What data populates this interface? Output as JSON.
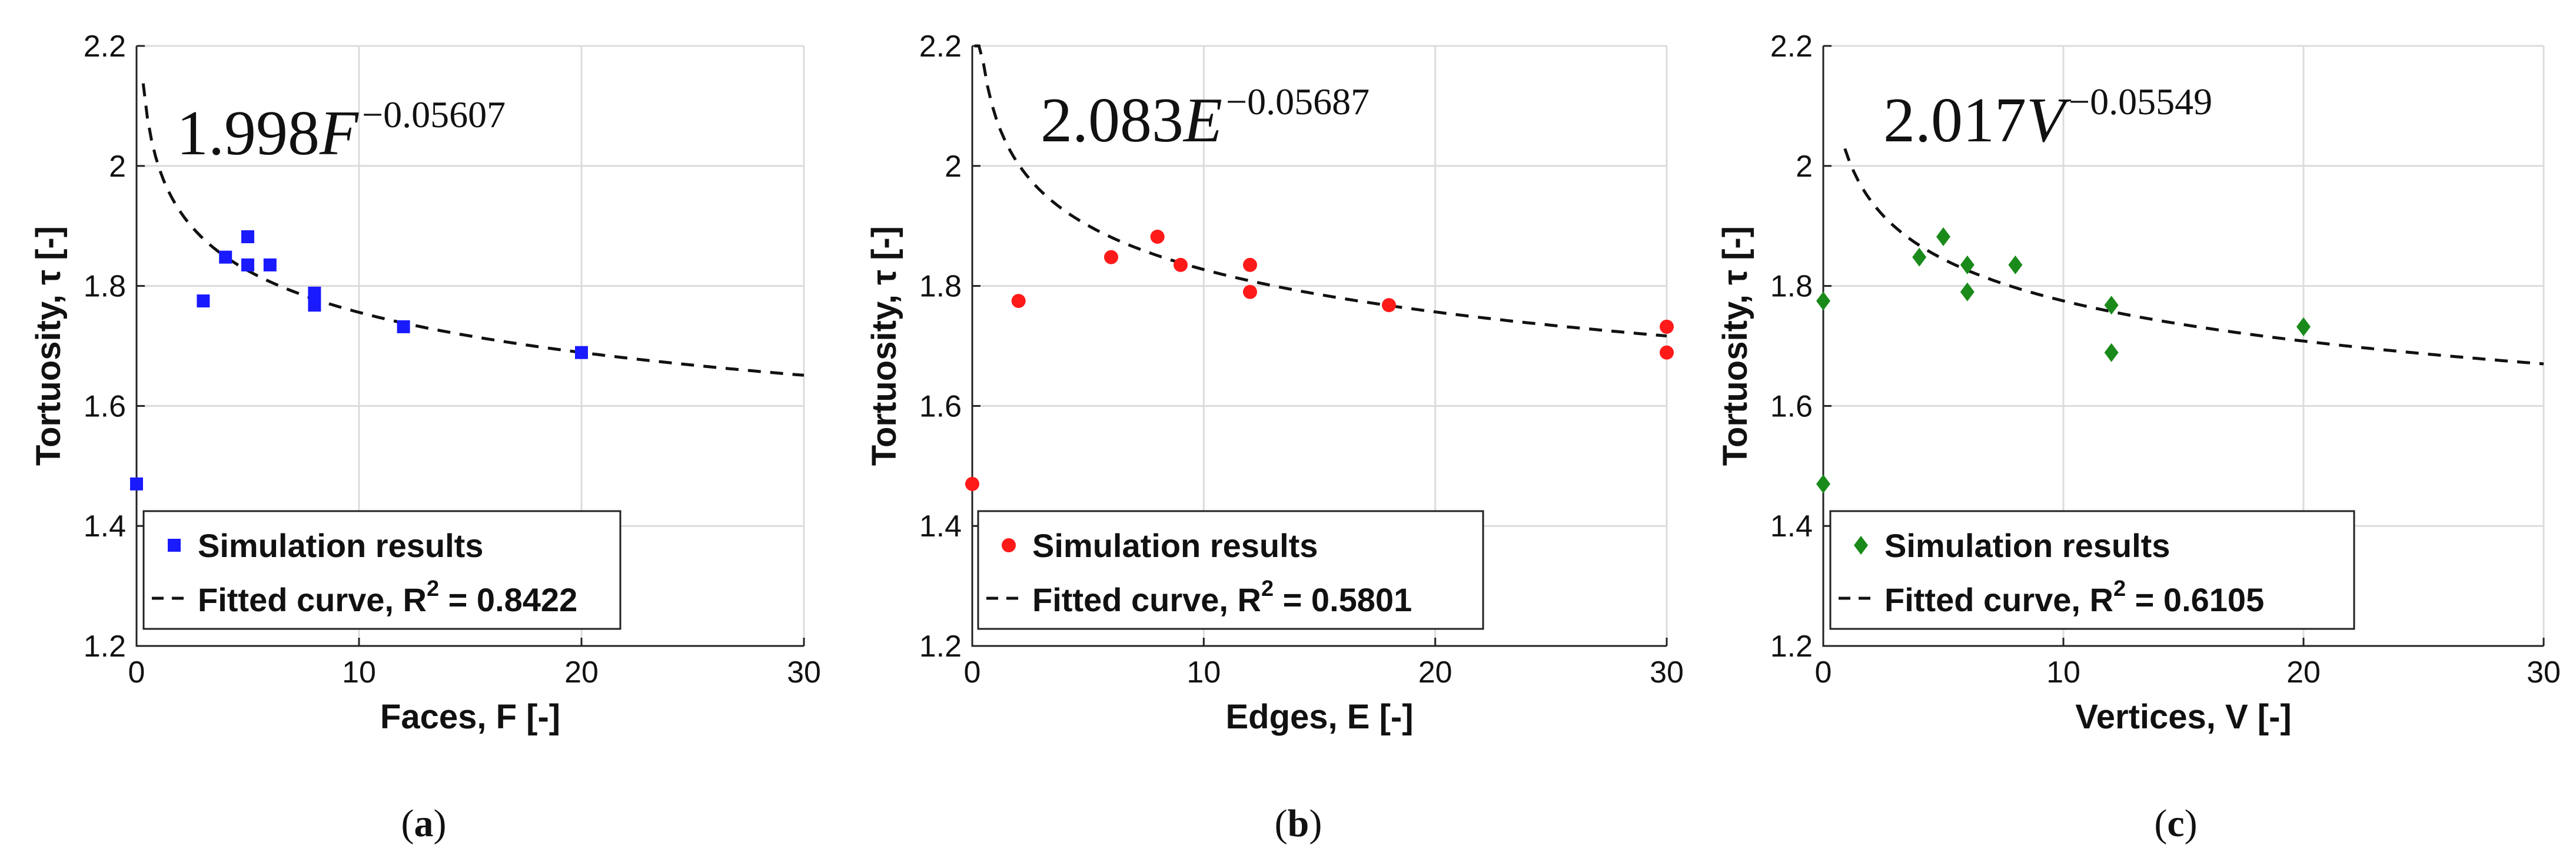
{
  "chart_data": [
    {
      "type": "scatter",
      "panel_label": "a",
      "xlabel": "Faces, F [-]",
      "ylabel": "Tortuosity, τ [-]",
      "xlim": [
        0,
        30
      ],
      "ylim": [
        1.2,
        2.2
      ],
      "xticks": [
        0,
        10,
        20,
        30
      ],
      "yticks": [
        1.2,
        1.4,
        1.6,
        1.8,
        2.0,
        2.2
      ],
      "xtick_labels": [
        "0",
        "10",
        "20",
        "30"
      ],
      "ytick_labels": [
        "1.2",
        "1.4",
        "1.6",
        "1.8",
        "2",
        "2.2"
      ],
      "grid": true,
      "marker": "square",
      "color": "#1a1aff",
      "points": {
        "x": [
          0,
          3,
          4,
          5,
          5,
          6,
          8,
          8,
          12,
          20
        ],
        "y": [
          1.47,
          1.775,
          1.848,
          1.882,
          1.835,
          1.835,
          1.788,
          1.768,
          1.732,
          1.689
        ]
      },
      "fit": {
        "a": 1.998,
        "b": -0.05607,
        "x_start": 0.3,
        "x_end": 30
      },
      "formula": {
        "coef": "1.998",
        "var": "F",
        "exp": "−0.05607"
      },
      "legend": {
        "position": "bottom-left",
        "entries": [
          "Simulation results",
          "Fitted curve, R",
          "2",
          " = 0.8422"
        ]
      }
    },
    {
      "type": "scatter",
      "panel_label": "b",
      "xlabel": "Edges, E [-]",
      "ylabel": "Tortuosity, τ [-]",
      "xlim": [
        0,
        30
      ],
      "ylim": [
        1.2,
        2.2
      ],
      "xticks": [
        0,
        10,
        20,
        30
      ],
      "yticks": [
        1.2,
        1.4,
        1.6,
        1.8,
        2.0,
        2.2
      ],
      "xtick_labels": [
        "0",
        "10",
        "20",
        "30"
      ],
      "ytick_labels": [
        "1.2",
        "1.4",
        "1.6",
        "1.8",
        "2",
        "2.2"
      ],
      "grid": true,
      "marker": "circle",
      "color": "#ff1a1a",
      "points": {
        "x": [
          0,
          2,
          6,
          8,
          9,
          12,
          12,
          18,
          30,
          30
        ],
        "y": [
          1.47,
          1.775,
          1.848,
          1.882,
          1.835,
          1.835,
          1.79,
          1.768,
          1.732,
          1.689
        ]
      },
      "fit": {
        "a": 2.083,
        "b": -0.05687,
        "x_start": 0.1,
        "x_end": 30
      },
      "formula": {
        "coef": "2.083",
        "var": "E",
        "exp": "−0.05687"
      },
      "legend": {
        "position": "bottom-left",
        "entries": [
          "Simulation results",
          "Fitted curve, R",
          "2",
          " = 0.5801"
        ]
      }
    },
    {
      "type": "scatter",
      "panel_label": "c",
      "xlabel": "Vertices, V [-]",
      "ylabel": "Tortuosity, τ [-]",
      "xlim": [
        0,
        30
      ],
      "ylim": [
        1.2,
        2.2
      ],
      "xticks": [
        0,
        10,
        20,
        30
      ],
      "yticks": [
        1.2,
        1.4,
        1.6,
        1.8,
        2.0,
        2.2
      ],
      "xtick_labels": [
        "0",
        "10",
        "20",
        "30"
      ],
      "ytick_labels": [
        "1.2",
        "1.4",
        "1.6",
        "1.8",
        "2",
        "2.2"
      ],
      "grid": true,
      "marker": "diamond",
      "color": "#1a8a1a",
      "points": {
        "x": [
          0,
          0,
          4,
          5,
          6,
          6,
          8,
          12,
          12,
          20
        ],
        "y": [
          1.775,
          1.47,
          1.848,
          1.882,
          1.835,
          1.79,
          1.835,
          1.768,
          1.689,
          1.732
        ]
      },
      "fit": {
        "a": 2.017,
        "b": -0.05549,
        "x_start": 0.9,
        "x_end": 30
      },
      "formula": {
        "coef": "2.017",
        "var": "V",
        "exp": "−0.05549"
      },
      "legend": {
        "position": "bottom-left",
        "entries": [
          "Simulation results",
          "Fitted curve, R",
          "2",
          " = 0.6105"
        ]
      }
    }
  ],
  "captions": [
    {
      "open": "(",
      "letter": "a",
      "close": ")"
    },
    {
      "open": "(",
      "letter": "b",
      "close": ")"
    },
    {
      "open": "(",
      "letter": "c",
      "close": ")"
    }
  ]
}
